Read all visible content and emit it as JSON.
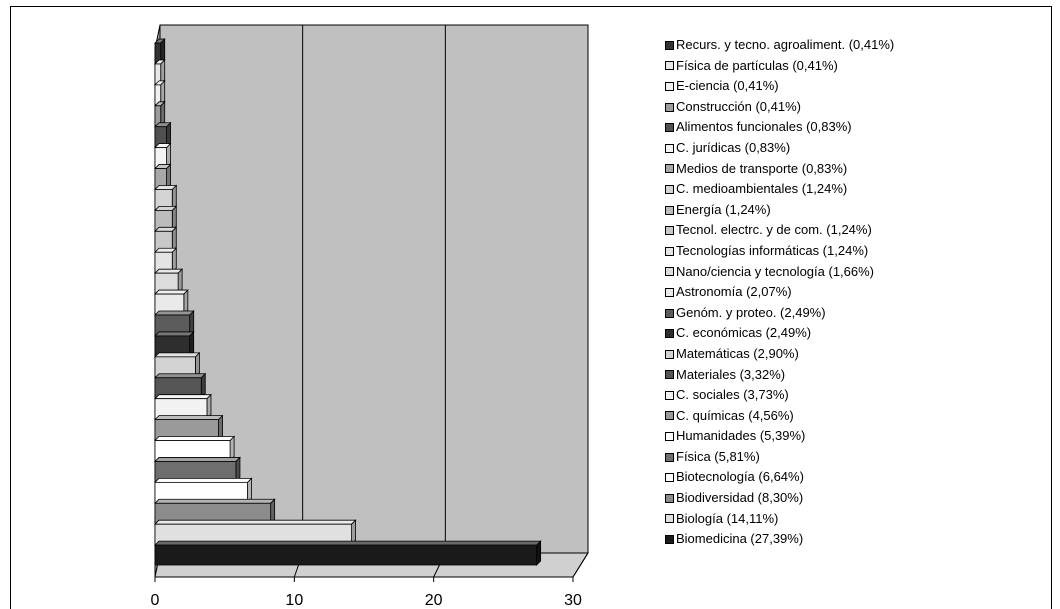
{
  "chart_data": {
    "type": "bar",
    "orientation": "horizontal",
    "style": "3d",
    "xlim": [
      0,
      30
    ],
    "xticks": [
      "0",
      "10",
      "20",
      "30"
    ],
    "grid": true,
    "legend_position": "right",
    "series": [
      {
        "label": "Biomedicina (27,39%)",
        "value": 27.39,
        "color": "#1a1a1a"
      },
      {
        "label": "Biología (14,11%)",
        "value": 14.11,
        "color": "#e0e0e0"
      },
      {
        "label": "Biodiversidad (8,30%)",
        "value": 8.3,
        "color": "#8c8c8c"
      },
      {
        "label": "Biotecnología (6,64%)",
        "value": 6.64,
        "color": "#ffffff"
      },
      {
        "label": "Física (5,81%)",
        "value": 5.81,
        "color": "#6e6e6e"
      },
      {
        "label": "Humanidades (5,39%)",
        "value": 5.39,
        "color": "#ffffff"
      },
      {
        "label": "C. químicas (4,56%)",
        "value": 4.56,
        "color": "#9a9a9a"
      },
      {
        "label": "C. sociales (3,73%)",
        "value": 3.73,
        "color": "#f2f2f2"
      },
      {
        "label": "Materiales (3,32%)",
        "value": 3.32,
        "color": "#555555"
      },
      {
        "label": "Matemáticas (2,90%)",
        "value": 2.9,
        "color": "#d2d2d2"
      },
      {
        "label": "C. económicas (2,49%)",
        "value": 2.49,
        "color": "#2e2e2e"
      },
      {
        "label": "Genóm. y proteo. (2,49%)",
        "value": 2.49,
        "color": "#5c5c5c"
      },
      {
        "label": "Astronomía (2,07%)",
        "value": 2.07,
        "color": "#eaeaea"
      },
      {
        "label": "Nano/ciencia y tecnología (1,66%)",
        "value": 1.66,
        "color": "#dcdcdc"
      },
      {
        "label": "Tecnologías informáticas (1,24%)",
        "value": 1.24,
        "color": "#e4e4e4"
      },
      {
        "label": "Tecnol. electrc. y de com. (1,24%)",
        "value": 1.24,
        "color": "#c8c8c8"
      },
      {
        "label": "Energía (1,24%)",
        "value": 1.24,
        "color": "#bcbcbc"
      },
      {
        "label": "C. medioambientales (1,24%)",
        "value": 1.24,
        "color": "#d4d4d4"
      },
      {
        "label": "Medios de transporte (0,83%)",
        "value": 0.83,
        "color": "#a8a8a8"
      },
      {
        "label": "C. jurídicas (0,83%)",
        "value": 0.83,
        "color": "#f4f4f4"
      },
      {
        "label": "Alimentos funcionales (0,83%)",
        "value": 0.83,
        "color": "#505050"
      },
      {
        "label": "Construcción (0,41%)",
        "value": 0.41,
        "color": "#9c9c9c"
      },
      {
        "label": "E-ciencia (0,41%)",
        "value": 0.41,
        "color": "#f0f0f0"
      },
      {
        "label": "Física de partículas (0,41%)",
        "value": 0.41,
        "color": "#e8e8e8"
      },
      {
        "label": "Recurs. y tecno. agroaliment. (0,41%)",
        "value": 0.41,
        "color": "#333333"
      }
    ],
    "colors": {
      "plot_wall": "#c0c0c0",
      "floor": "#d0d0d0",
      "grid": "#000000"
    }
  }
}
